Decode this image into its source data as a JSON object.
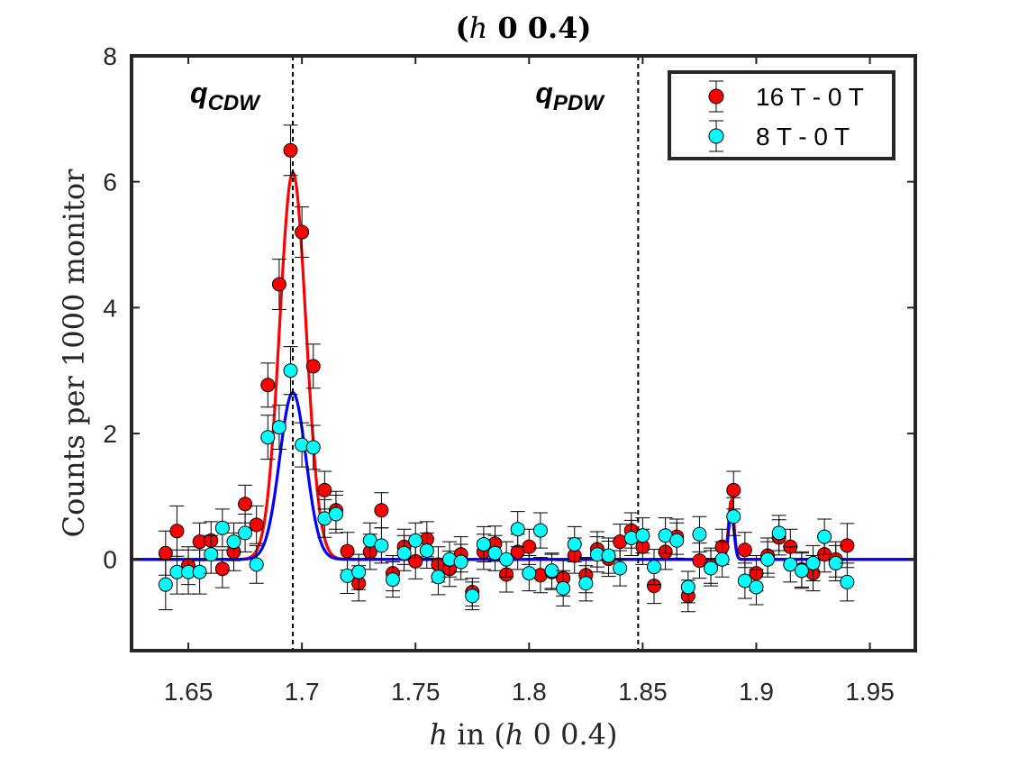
{
  "chart_data": {
    "type": "scatter",
    "title": "(h 0 0.4)",
    "title_parts": {
      "italic": "h",
      "rest": "0 0.4"
    },
    "xlabel": "h in (h 0 0.4)",
    "xlabel_parts": {
      "italic": "h",
      "mid": " in (",
      "italic2": "h",
      "rest": " 0 0.4)"
    },
    "ylabel": "Counts per 1000 monitor",
    "xlim": [
      1.625,
      1.97
    ],
    "ylim": [
      -1.45,
      8
    ],
    "xticks": [
      1.65,
      1.7,
      1.75,
      1.8,
      1.85,
      1.9,
      1.95
    ],
    "xtick_labels": [
      "1.65",
      "1.7",
      "1.75",
      "1.8",
      "1.85",
      "1.9",
      "1.95"
    ],
    "yticks": [
      0,
      2,
      4,
      6,
      8
    ],
    "ytick_labels": [
      "0",
      "2",
      "4",
      "6",
      "8"
    ],
    "grid": false,
    "legend_position": "top-right",
    "vlines": [
      {
        "x": 1.696,
        "label_main": "q",
        "label_sub": "CDW"
      },
      {
        "x": 1.848,
        "label_main": "q",
        "label_sub": "PDW"
      }
    ],
    "series": [
      {
        "name": "16 T - 0 T",
        "color": "#ff0000",
        "x": [
          1.64,
          1.645,
          1.65,
          1.655,
          1.66,
          1.665,
          1.67,
          1.675,
          1.68,
          1.685,
          1.69,
          1.695,
          1.7,
          1.705,
          1.71,
          1.715,
          1.72,
          1.725,
          1.73,
          1.735,
          1.74,
          1.745,
          1.75,
          1.755,
          1.76,
          1.765,
          1.77,
          1.775,
          1.78,
          1.785,
          1.79,
          1.795,
          1.8,
          1.805,
          1.81,
          1.815,
          1.82,
          1.825,
          1.83,
          1.835,
          1.84,
          1.845,
          1.85,
          1.855,
          1.86,
          1.865,
          1.87,
          1.875,
          1.88,
          1.885,
          1.89,
          1.895,
          1.9,
          1.905,
          1.91,
          1.915,
          1.92,
          1.925,
          1.93,
          1.935,
          1.94
        ],
        "y": [
          0.1,
          0.45,
          -0.1,
          0.28,
          0.3,
          -0.15,
          0.12,
          0.88,
          0.55,
          2.77,
          4.37,
          6.5,
          5.2,
          3.07,
          1.1,
          0.78,
          0.13,
          -0.38,
          0.12,
          0.78,
          -0.22,
          0.2,
          -0.03,
          0.32,
          -0.08,
          -0.15,
          0.08,
          -0.52,
          0.12,
          0.25,
          -0.24,
          0.12,
          0.2,
          -0.25,
          -0.2,
          -0.3,
          0.06,
          -0.25,
          0.16,
          0.01,
          0.28,
          0.46,
          0.2,
          -0.42,
          0.12,
          0.36,
          -0.58,
          -0.02,
          -0.1,
          0.2,
          1.1,
          0.15,
          -0.22,
          0.06,
          0.35,
          0.2,
          -0.16,
          -0.22,
          0.08,
          0.0,
          0.22
        ],
        "err": [
          0.35,
          0.4,
          0.3,
          0.3,
          0.3,
          0.3,
          0.3,
          0.3,
          0.3,
          0.35,
          0.4,
          0.4,
          0.4,
          0.35,
          0.3,
          0.3,
          0.3,
          0.28,
          0.28,
          0.28,
          0.28,
          0.28,
          0.28,
          0.28,
          0.28,
          0.28,
          0.28,
          0.22,
          0.28,
          0.28,
          0.28,
          0.28,
          0.28,
          0.28,
          0.28,
          0.28,
          0.28,
          0.28,
          0.28,
          0.28,
          0.28,
          0.28,
          0.28,
          0.28,
          0.28,
          0.28,
          0.25,
          0.28,
          0.28,
          0.28,
          0.3,
          0.28,
          0.28,
          0.28,
          0.28,
          0.28,
          0.28,
          0.28,
          0.28,
          0.28,
          0.35
        ],
        "fit": {
          "type": "gaussian",
          "peaks": [
            {
              "center": 1.696,
              "amplitude": 6.15,
              "sigma": 0.0058
            },
            {
              "center": 1.889,
              "amplitude": 0.95,
              "sigma": 0.0012
            }
          ],
          "color": "#ff0000"
        }
      },
      {
        "name": "8 T - 0 T",
        "color": "#00ffff",
        "x": [
          1.64,
          1.645,
          1.65,
          1.655,
          1.66,
          1.665,
          1.67,
          1.675,
          1.68,
          1.685,
          1.69,
          1.695,
          1.7,
          1.705,
          1.71,
          1.715,
          1.72,
          1.725,
          1.73,
          1.735,
          1.74,
          1.745,
          1.75,
          1.755,
          1.76,
          1.765,
          1.77,
          1.775,
          1.78,
          1.785,
          1.79,
          1.795,
          1.8,
          1.805,
          1.81,
          1.815,
          1.82,
          1.825,
          1.83,
          1.835,
          1.84,
          1.845,
          1.85,
          1.855,
          1.86,
          1.865,
          1.87,
          1.875,
          1.88,
          1.885,
          1.89,
          1.895,
          1.9,
          1.905,
          1.91,
          1.915,
          1.92,
          1.925,
          1.93,
          1.935,
          1.94
        ],
        "y": [
          -0.4,
          -0.2,
          -0.2,
          -0.2,
          0.08,
          0.5,
          0.28,
          0.42,
          -0.08,
          1.94,
          2.1,
          3.0,
          1.82,
          1.78,
          0.65,
          0.72,
          -0.26,
          -0.2,
          0.3,
          0.22,
          -0.32,
          0.1,
          0.3,
          0.14,
          -0.28,
          0.0,
          -0.04,
          -0.58,
          0.24,
          0.1,
          0.0,
          0.48,
          -0.22,
          0.46,
          -0.18,
          -0.46,
          0.24,
          -0.38,
          0.08,
          0.06,
          -0.14,
          0.34,
          0.38,
          -0.12,
          0.38,
          0.3,
          -0.44,
          0.4,
          -0.14,
          0.0,
          0.68,
          -0.34,
          -0.44,
          0.0,
          0.42,
          -0.08,
          -0.18,
          -0.06,
          0.36,
          -0.06,
          -0.36
        ],
        "err": [
          0.4,
          0.35,
          0.35,
          0.35,
          0.3,
          0.3,
          0.3,
          0.3,
          0.3,
          0.35,
          0.35,
          0.38,
          0.35,
          0.35,
          0.3,
          0.3,
          0.28,
          0.28,
          0.28,
          0.28,
          0.28,
          0.28,
          0.28,
          0.28,
          0.28,
          0.28,
          0.28,
          0.22,
          0.28,
          0.28,
          0.28,
          0.28,
          0.28,
          0.28,
          0.28,
          0.28,
          0.28,
          0.28,
          0.28,
          0.28,
          0.28,
          0.28,
          0.28,
          0.28,
          0.28,
          0.28,
          0.25,
          0.28,
          0.28,
          0.28,
          0.3,
          0.28,
          0.28,
          0.28,
          0.28,
          0.28,
          0.28,
          0.28,
          0.28,
          0.28,
          0.3
        ],
        "fit": {
          "type": "gaussian",
          "peaks": [
            {
              "center": 1.696,
              "amplitude": 2.65,
              "sigma": 0.0058
            },
            {
              "center": 1.889,
              "amplitude": 0.75,
              "sigma": 0.0012
            }
          ],
          "color": "#0000ff"
        }
      }
    ]
  }
}
